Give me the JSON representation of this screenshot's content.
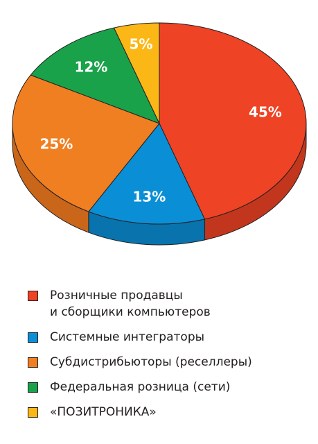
{
  "chart_data": {
    "type": "pie",
    "title": "",
    "slices": [
      {
        "label": "Розничные продавцы\nи сборщики компьютеров",
        "value": 45,
        "value_label": "45%",
        "color": "#ee4325",
        "side_color": "#c2361d"
      },
      {
        "label": "Системные интеграторы",
        "value": 13,
        "value_label": "13%",
        "color": "#0a8fd6",
        "side_color": "#0873ad"
      },
      {
        "label": "Субдистрибьюторы (реселлеры)",
        "value": 25,
        "value_label": "25%",
        "color": "#f07f22",
        "side_color": "#c9661a"
      },
      {
        "label": "Федеральная розница (сети)",
        "value": 12,
        "value_label": "12%",
        "color": "#1aa24b",
        "side_color": "#15833c"
      },
      {
        "label": "«ПОЗИТРОНИКА»",
        "value": 5,
        "value_label": "5%",
        "color": "#fbb715",
        "side_color": "#d49a10"
      }
    ],
    "legend_position": "bottom",
    "style": "3d-tilted"
  }
}
